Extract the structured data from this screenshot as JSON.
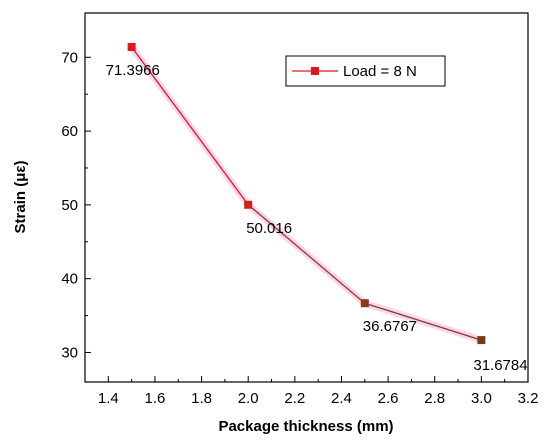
{
  "chart_data": {
    "type": "line",
    "xlabel": "Package thickness (mm)",
    "ylabel": "Strain (με)",
    "xlim": [
      1.3,
      3.2
    ],
    "ylim": [
      26,
      76
    ],
    "x_ticks": [
      1.4,
      1.6,
      1.8,
      2.0,
      2.2,
      2.4,
      2.6,
      2.8,
      3.0,
      3.2
    ],
    "y_ticks": [
      30,
      40,
      50,
      60,
      70
    ],
    "grid": false,
    "legend_position": "top-right",
    "series": [
      {
        "name": "Load = 8 N",
        "color": "#e8141c",
        "x": [
          1.5,
          2.0,
          2.5,
          3.0
        ],
        "y": [
          71.3966,
          50.016,
          36.6767,
          31.6784
        ],
        "labels": [
          "71.3966",
          "50.016",
          "36.6767",
          "31.6784"
        ],
        "marker_colors": [
          "#e8141c",
          "#d0201a",
          "#8a3a1a",
          "#7a3b14"
        ]
      }
    ]
  }
}
